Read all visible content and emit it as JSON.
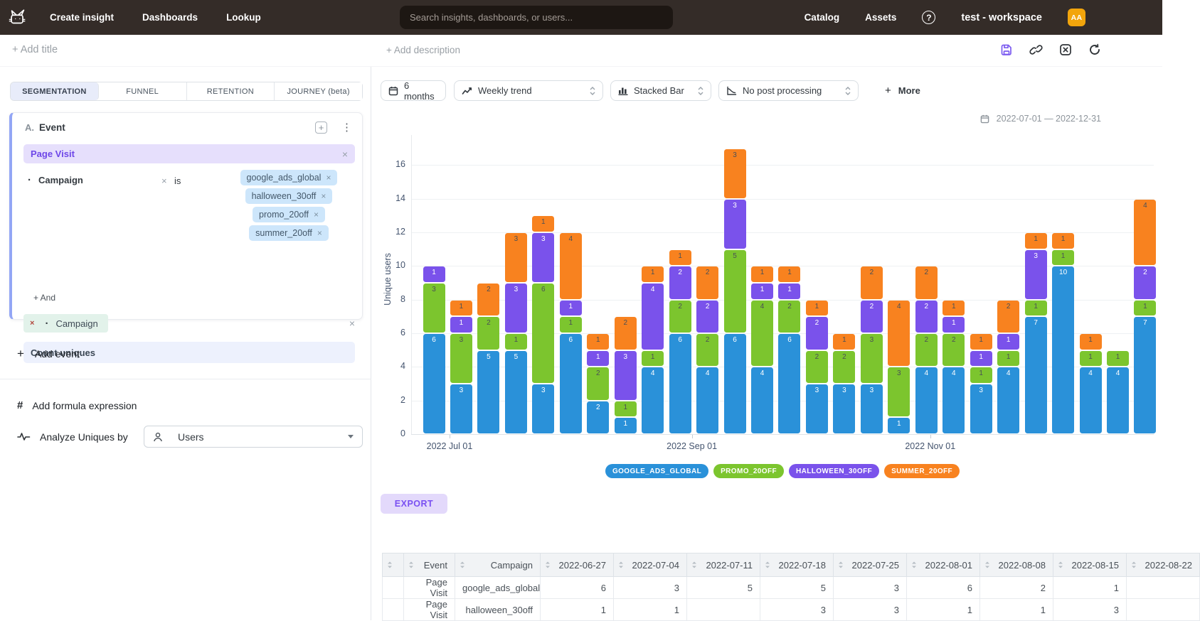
{
  "nav": {
    "create_insight": "Create insight",
    "dashboards": "Dashboards",
    "lookup": "Lookup",
    "search_placeholder": "Search insights, dashboards, or users...",
    "catalog": "Catalog",
    "assets": "Assets",
    "workspace": "test - workspace",
    "avatar_initials": "AA"
  },
  "titlebar": {
    "add_title": "+ Add title",
    "add_description": "+ Add description"
  },
  "left_panel": {
    "tabs": [
      {
        "label": "SEGMENTATION",
        "active": true
      },
      {
        "label": "FUNNEL",
        "active": false
      },
      {
        "label": "RETENTION",
        "active": false
      },
      {
        "label": "JOURNEY (beta)",
        "active": false
      }
    ],
    "event_card": {
      "index_label": "A.",
      "title": "Event",
      "event_name": "Page Visit",
      "filter": {
        "property": "Campaign",
        "operator": "is",
        "values": [
          "google_ads_global",
          "halloween_30off",
          "promo_20off",
          "summer_20off"
        ]
      },
      "add_condition": "+ And",
      "breakdown_property": "Campaign",
      "aggregation": "Count uniques"
    },
    "add_event": "Add event",
    "add_formula": "Add formula expression",
    "analyze_label": "Analyze Uniques by",
    "analyze_value": "Users"
  },
  "toolbar": {
    "date_button": "6 months",
    "trend_select": "Weekly trend",
    "chart_type_select": "Stacked Bar",
    "post_processing_select": "No post processing",
    "more": "More"
  },
  "chart": {
    "date_range": "2022-07-01 — 2022-12-31",
    "ylabel": "Unique users",
    "yticks": [
      0,
      2,
      4,
      6,
      8,
      10,
      12,
      14,
      16
    ],
    "xticks": [
      {
        "label": "2022 Jul 01",
        "day_offset": 4
      },
      {
        "label": "2022 Sep 01",
        "day_offset": 66
      },
      {
        "label": "2022 Nov 01",
        "day_offset": 127
      }
    ]
  },
  "chart_data": {
    "type": "bar",
    "stacked": true,
    "title": "",
    "xlabel": "",
    "ylabel": "Unique users",
    "ylim": [
      0,
      17.8
    ],
    "grid": true,
    "legend_position": "bottom",
    "x": [
      "2022-06-27",
      "2022-07-04",
      "2022-07-11",
      "2022-07-18",
      "2022-07-25",
      "2022-08-01",
      "2022-08-08",
      "2022-08-15",
      "2022-08-22",
      "2022-08-29",
      "2022-09-05",
      "2022-09-12",
      "2022-09-19",
      "2022-09-26",
      "2022-10-03",
      "2022-10-10",
      "2022-10-17",
      "2022-10-24",
      "2022-10-31",
      "2022-11-07",
      "2022-11-14",
      "2022-11-21",
      "2022-11-28",
      "2022-12-05",
      "2022-12-12",
      "2022-12-19",
      "2022-12-26"
    ],
    "series": [
      {
        "name": "GOOGLE_ADS_GLOBAL",
        "color": "#2a91d9",
        "label_color": "#ffffff",
        "values": [
          6,
          3,
          5,
          5,
          3,
          6,
          2,
          1,
          4,
          6,
          4,
          6,
          4,
          6,
          3,
          3,
          3,
          1,
          4,
          4,
          3,
          4,
          7,
          10,
          4,
          4,
          7
        ]
      },
      {
        "name": "PROMO_20OFF",
        "color": "#7cc52e",
        "label_color": "#4a5056",
        "values": [
          3,
          3,
          2,
          1,
          6,
          1,
          2,
          1,
          1,
          2,
          2,
          5,
          4,
          2,
          2,
          2,
          3,
          3,
          2,
          2,
          1,
          1,
          1,
          1,
          1,
          1,
          1
        ]
      },
      {
        "name": "HALLOWEEN_30OFF",
        "color": "#7a52eb",
        "label_color": "#ffffff",
        "values": [
          1,
          1,
          0,
          3,
          3,
          1,
          1,
          3,
          4,
          2,
          2,
          3,
          1,
          1,
          2,
          0,
          2,
          0,
          2,
          1,
          1,
          1,
          3,
          0,
          0,
          0,
          2
        ]
      },
      {
        "name": "SUMMER_20OFF",
        "color": "#f8821f",
        "label_color": "#4a5056",
        "values": [
          0,
          1,
          2,
          3,
          1,
          4,
          1,
          2,
          1,
          1,
          2,
          3,
          1,
          1,
          1,
          1,
          2,
          4,
          2,
          1,
          1,
          2,
          1,
          1,
          1,
          0,
          4
        ]
      }
    ]
  },
  "export_label": "EXPORT",
  "table": {
    "columns": [
      "Event",
      "Campaign",
      "2022-06-27",
      "2022-07-04",
      "2022-07-11",
      "2022-07-18",
      "2022-07-25",
      "2022-08-01",
      "2022-08-08",
      "2022-08-15",
      "2022-08-22"
    ],
    "rows": [
      [
        "Page Visit",
        "google_ads_global",
        "6",
        "3",
        "5",
        "5",
        "3",
        "6",
        "2",
        "1",
        ""
      ],
      [
        "Page Visit",
        "halloween_30off",
        "1",
        "1",
        "",
        "3",
        "3",
        "1",
        "1",
        "3",
        ""
      ]
    ]
  }
}
